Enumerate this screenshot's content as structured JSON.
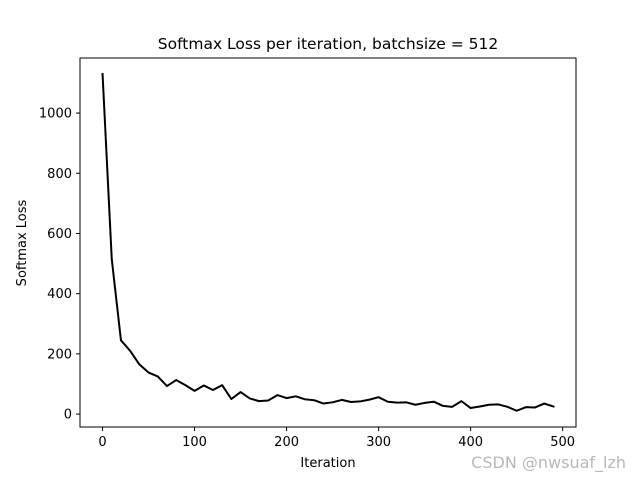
{
  "chart_data": {
    "type": "line",
    "title": "Softmax Loss per iteration, batchsize = 512",
    "xlabel": "Iteration",
    "ylabel": "Softmax Loss",
    "xlim": [
      -24.5,
      514.5
    ],
    "ylim": [
      -43,
      1183
    ],
    "xticks": [
      0,
      100,
      200,
      300,
      400,
      500
    ],
    "yticks": [
      0,
      200,
      400,
      600,
      800,
      1000
    ],
    "grid": false,
    "legend": false,
    "series": [
      {
        "color": "#000000",
        "x": [
          0,
          10,
          20,
          30,
          40,
          50,
          60,
          70,
          80,
          90,
          100,
          110,
          120,
          130,
          140,
          150,
          160,
          170,
          180,
          190,
          200,
          210,
          220,
          230,
          240,
          250,
          260,
          270,
          280,
          290,
          300,
          310,
          320,
          330,
          340,
          350,
          360,
          370,
          380,
          390,
          400,
          410,
          420,
          430,
          440,
          450,
          460,
          470,
          480,
          490
        ],
        "y": [
          1130,
          515,
          245,
          210,
          165,
          138,
          125,
          93,
          113,
          96,
          77,
          95,
          80,
          96,
          50,
          73,
          52,
          43,
          45,
          63,
          53,
          59,
          49,
          46,
          35,
          39,
          47,
          40,
          42,
          48,
          56,
          41,
          38,
          39,
          31,
          37,
          41,
          27,
          24,
          43,
          20,
          25,
          31,
          32,
          24,
          11,
          23,
          22,
          35,
          25
        ]
      }
    ]
  },
  "watermark": "CSDN @nwsuaf_lzh"
}
